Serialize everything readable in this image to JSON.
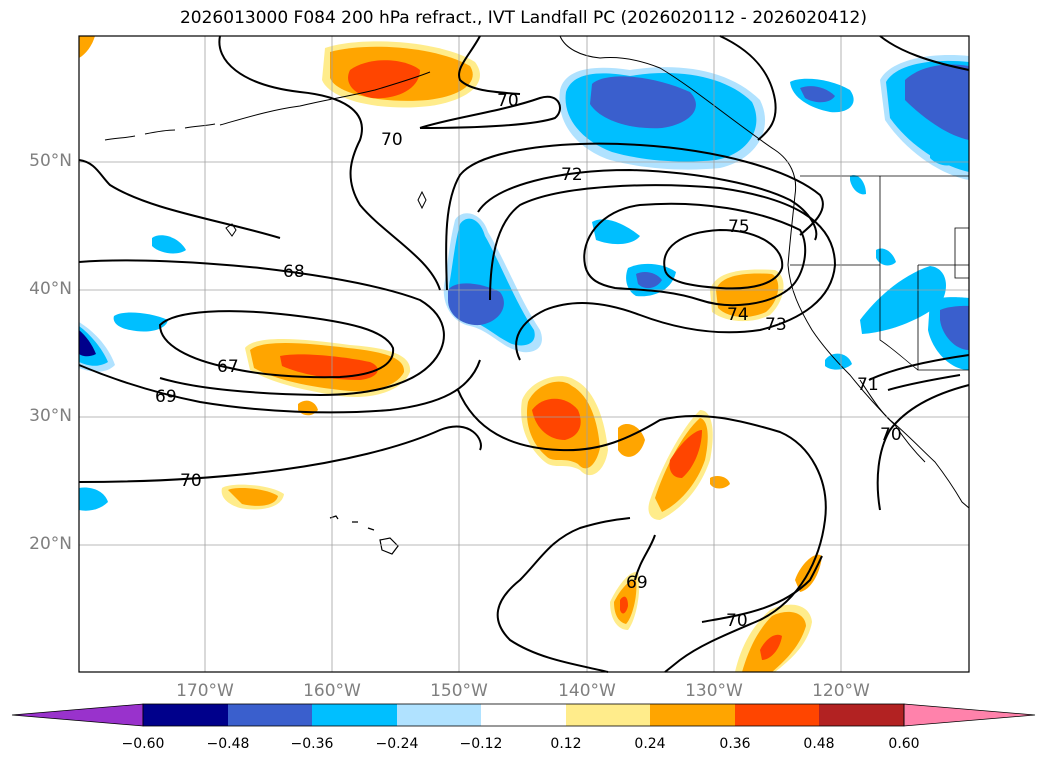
{
  "title": "2026013000 F084 200 hPa refract., IVT Landfall PC (2026020112 - 2026020412)",
  "longitude_labels": [
    "170°W",
    "160°W",
    "150°W",
    "140°W",
    "130°W",
    "120°W"
  ],
  "latitude_labels": [
    "50°N",
    "40°N",
    "30°N",
    "20°N"
  ],
  "contour_labels": [
    "70",
    "70",
    "72",
    "75",
    "68",
    "67",
    "69",
    "74",
    "73",
    "71",
    "70",
    "70",
    "69",
    "70"
  ],
  "colorbar": {
    "ticks": [
      "−0.60",
      "−0.48",
      "−0.36",
      "−0.24",
      "−0.12",
      "0.12",
      "0.24",
      "0.36",
      "0.48",
      "0.60"
    ],
    "colors": [
      "#9932cc",
      "#00008b",
      "#3a5fcd",
      "#00bfff",
      "#b0e2ff",
      "#ffffff",
      "#ffec8b",
      "#ffa500",
      "#ff4500",
      "#b22222",
      "#ff82ab"
    ]
  },
  "colors": {
    "positive_shading": "#ffa500",
    "negative_shading": "#00bfff",
    "contour": "#000000"
  }
}
